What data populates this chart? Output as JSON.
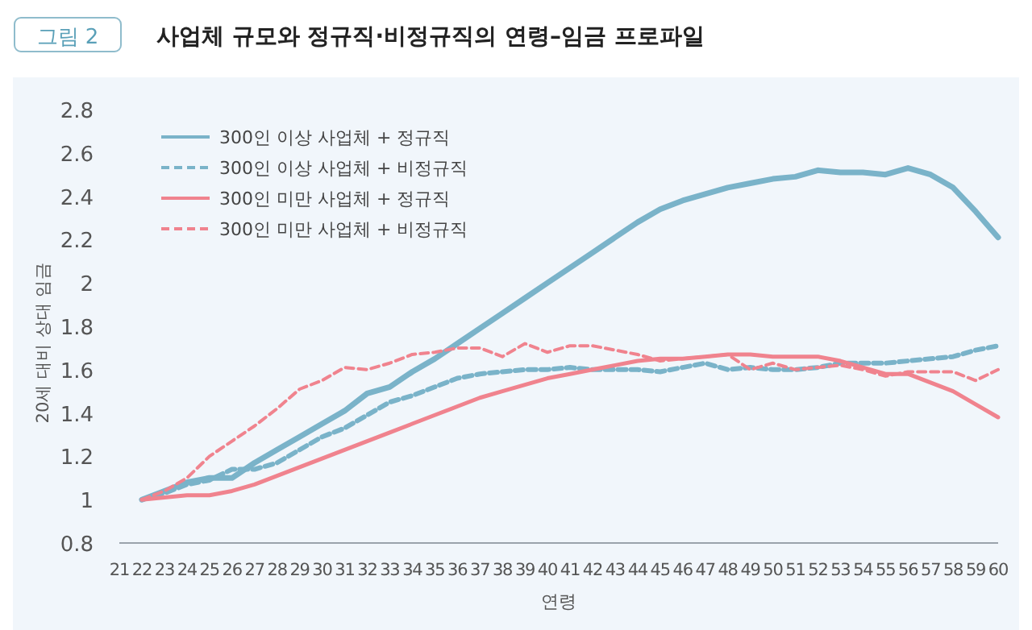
{
  "chart_data": {
    "type": "line",
    "title": "사업체 규모와 정규직·비정규직의 연령–임금 프로파일",
    "annotations": [
      "그림 2"
    ],
    "xlabel": "연령",
    "ylabel": "20세 대비 상대 임금",
    "x": [
      22,
      23,
      24,
      25,
      26,
      27,
      28,
      29,
      30,
      31,
      32,
      33,
      34,
      35,
      36,
      37,
      38,
      39,
      40,
      41,
      42,
      43,
      44,
      45,
      46,
      47,
      48,
      49,
      50,
      51,
      52,
      53,
      54,
      55,
      56,
      57,
      58,
      59,
      60
    ],
    "xlim": [
      21,
      60
    ],
    "xticks": [
      21,
      22,
      23,
      24,
      25,
      26,
      27,
      28,
      29,
      30,
      31,
      32,
      33,
      34,
      35,
      36,
      37,
      38,
      39,
      40,
      41,
      42,
      43,
      44,
      45,
      46,
      47,
      48,
      49,
      50,
      51,
      52,
      53,
      54,
      55,
      56,
      57,
      58,
      59,
      60
    ],
    "ylim": [
      0.8,
      2.8
    ],
    "yticks": [
      0.8,
      1,
      1.2,
      1.4,
      1.6,
      1.8,
      2,
      2.2,
      2.4,
      2.6,
      2.8
    ],
    "legend": "top left",
    "grid": false,
    "series": [
      {
        "name": "300인 이상 사업체 + 정규직",
        "color": "#7ab3c9",
        "line_style": "solid",
        "values": [
          1.0,
          1.04,
          1.08,
          1.1,
          1.1,
          1.17,
          1.23,
          1.29,
          1.35,
          1.41,
          1.49,
          1.52,
          1.59,
          1.65,
          1.72,
          1.79,
          1.86,
          1.93,
          2.0,
          2.07,
          2.14,
          2.21,
          2.28,
          2.34,
          2.38,
          2.41,
          2.44,
          2.46,
          2.48,
          2.49,
          2.52,
          2.51,
          2.51,
          2.5,
          2.53,
          2.5,
          2.44,
          2.33,
          2.21
        ]
      },
      {
        "name": "300인 이상 사업체 + 비정규직",
        "color": "#7ab3c9",
        "line_style": "dashed",
        "values": [
          1.0,
          1.03,
          1.07,
          1.09,
          1.14,
          1.14,
          1.17,
          1.23,
          1.29,
          1.33,
          1.39,
          1.45,
          1.48,
          1.52,
          1.56,
          1.58,
          1.59,
          1.6,
          1.6,
          1.61,
          1.6,
          1.6,
          1.6,
          1.59,
          1.61,
          1.63,
          1.6,
          1.61,
          1.6,
          1.6,
          1.61,
          1.63,
          1.63,
          1.63,
          1.64,
          1.65,
          1.66,
          1.69,
          1.71
        ]
      },
      {
        "name": "300인 미만 사업체 + 정규직",
        "color": "#f0838e",
        "line_style": "solid",
        "values": [
          1.0,
          1.01,
          1.02,
          1.02,
          1.04,
          1.07,
          1.11,
          1.15,
          1.19,
          1.23,
          1.27,
          1.31,
          1.35,
          1.39,
          1.43,
          1.47,
          1.5,
          1.53,
          1.56,
          1.58,
          1.6,
          1.62,
          1.64,
          1.65,
          1.65,
          1.66,
          1.67,
          1.67,
          1.66,
          1.66,
          1.66,
          1.64,
          1.61,
          1.58,
          1.58,
          1.54,
          1.5,
          1.44,
          1.38
        ]
      },
      {
        "name": "300인 미만 사업체 + 비정규직",
        "color": "#f0838e",
        "line_style": "dashed",
        "values": [
          1.0,
          1.04,
          1.1,
          1.2,
          1.27,
          1.34,
          1.42,
          1.51,
          1.55,
          1.61,
          1.6,
          1.63,
          1.67,
          1.68,
          1.7,
          1.7,
          1.66,
          1.72,
          1.68,
          1.71,
          1.71,
          1.69,
          1.67,
          1.64,
          1.65,
          1.66,
          1.67,
          1.6,
          1.63,
          1.6,
          1.61,
          1.62,
          1.6,
          1.57,
          1.59,
          1.59,
          1.59,
          1.55,
          1.6
        ]
      }
    ]
  }
}
